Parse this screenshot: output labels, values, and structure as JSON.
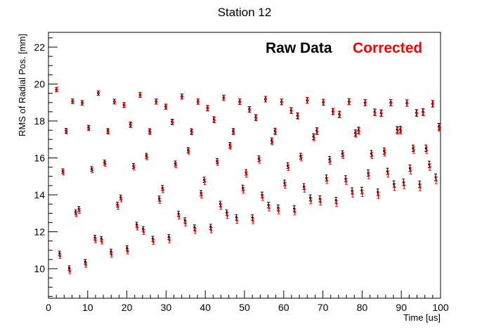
{
  "chart_data": {
    "type": "scatter",
    "title": "Station 12",
    "xlabel": "Time [us]",
    "ylabel": "RMS of Radial Pos. [mm]",
    "xlim": [
      0,
      100
    ],
    "ylim": [
      8.4,
      22.8
    ],
    "x_ticks": [
      0,
      10,
      20,
      30,
      40,
      50,
      60,
      70,
      80,
      90,
      100
    ],
    "y_ticks": [
      10,
      12,
      14,
      16,
      18,
      20,
      22
    ],
    "grid": false,
    "legend_placement": "top-right",
    "series": [
      {
        "name": "Raw Data",
        "color": "#000000"
      },
      {
        "name": "Corrected",
        "color": "#ff0000"
      }
    ],
    "pattern": {
      "description_of_values": "oscillating RMS points sampled every ~0.82 us from 2 to 100 us",
      "x_start": 2.0,
      "x_step": 0.82,
      "x_end": 100.0,
      "upper_envelope_start": 19.7,
      "upper_envelope_end": 19.0,
      "lower_envelope_start": 9.2,
      "lower_envelope_end": 14.6,
      "oscillation_period_us": 2.13,
      "raw_offset_mm": 0.18
    }
  }
}
